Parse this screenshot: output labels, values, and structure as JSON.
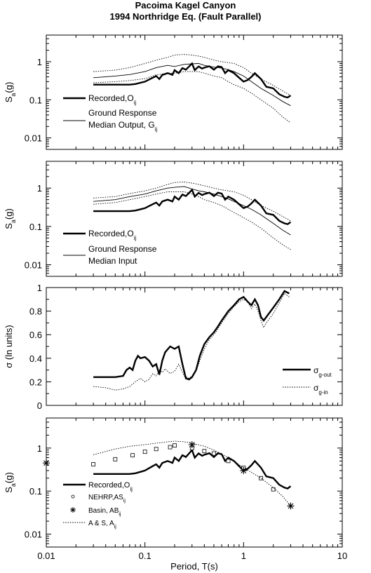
{
  "figure": {
    "title_line1": "Pacoima Kagel Canyon",
    "title_line2": "1994 Northridge Eq. (Fault Parallel)",
    "xlabel": "Period, T(s)",
    "xtick_labels": [
      "0.01",
      "0.1",
      "1",
      "10"
    ]
  },
  "chart_data": [
    {
      "type": "line",
      "panel": 1,
      "xscale": "log",
      "yscale": "log",
      "xlim": [
        0.01,
        10
      ],
      "ylim": [
        0.005,
        5
      ],
      "ylabel": "Sa(g)",
      "ytick_labels": [
        "0.01",
        "0.1",
        "1"
      ],
      "legend": [
        "Recorded,Oij",
        "Ground Response Median Output, Gij"
      ],
      "series": [
        {
          "name": "Recorded,Oij",
          "style": "thick",
          "x": [
            0.03,
            0.04,
            0.05,
            0.06,
            0.07,
            0.08,
            0.09,
            0.1,
            0.11,
            0.12,
            0.13,
            0.14,
            0.15,
            0.17,
            0.19,
            0.2,
            0.22,
            0.24,
            0.26,
            0.28,
            0.3,
            0.32,
            0.35,
            0.38,
            0.4,
            0.45,
            0.5,
            0.55,
            0.6,
            0.65,
            0.7,
            0.8,
            0.9,
            1.0,
            1.1,
            1.2,
            1.3,
            1.5,
            1.7,
            2.0,
            2.3,
            2.6,
            2.8,
            3.0
          ],
          "y": [
            0.25,
            0.25,
            0.25,
            0.25,
            0.25,
            0.26,
            0.28,
            0.3,
            0.34,
            0.38,
            0.42,
            0.35,
            0.45,
            0.5,
            0.45,
            0.6,
            0.5,
            0.68,
            0.62,
            0.75,
            0.9,
            0.6,
            0.75,
            0.66,
            0.7,
            0.76,
            0.62,
            0.76,
            0.72,
            0.5,
            0.6,
            0.5,
            0.38,
            0.3,
            0.33,
            0.4,
            0.5,
            0.35,
            0.22,
            0.2,
            0.14,
            0.12,
            0.115,
            0.13
          ]
        },
        {
          "name": "Ground Response Median Output, Gij",
          "style": "thin",
          "x": [
            0.03,
            0.05,
            0.07,
            0.1,
            0.13,
            0.17,
            0.2,
            0.25,
            0.3,
            0.35,
            0.4,
            0.5,
            0.6,
            0.7,
            0.8,
            1.0,
            1.2,
            1.5,
            2.0,
            2.5,
            3.0
          ],
          "y": [
            0.38,
            0.42,
            0.46,
            0.55,
            0.7,
            0.8,
            0.75,
            0.85,
            0.88,
            0.9,
            0.8,
            0.72,
            0.68,
            0.62,
            0.55,
            0.42,
            0.3,
            0.2,
            0.13,
            0.09,
            0.07
          ]
        },
        {
          "name": "upper",
          "style": "dotted",
          "x": [
            0.03,
            0.05,
            0.07,
            0.1,
            0.13,
            0.17,
            0.2,
            0.25,
            0.3,
            0.35,
            0.4,
            0.5,
            0.6,
            0.7,
            0.8,
            1.0,
            1.2,
            1.5,
            2.0,
            2.5,
            3.0
          ],
          "y": [
            0.55,
            0.6,
            0.7,
            0.9,
            1.1,
            1.3,
            1.5,
            1.55,
            1.5,
            1.4,
            1.3,
            1.1,
            1.0,
            0.95,
            0.9,
            0.7,
            0.5,
            0.35,
            0.24,
            0.17,
            0.13
          ]
        },
        {
          "name": "lower",
          "style": "dotted",
          "x": [
            0.03,
            0.05,
            0.07,
            0.1,
            0.13,
            0.17,
            0.2,
            0.25,
            0.3,
            0.35,
            0.4,
            0.5,
            0.6,
            0.7,
            0.8,
            1.0,
            1.2,
            1.5,
            2.0,
            2.5,
            3.0
          ],
          "y": [
            0.28,
            0.3,
            0.32,
            0.36,
            0.45,
            0.5,
            0.5,
            0.55,
            0.55,
            0.55,
            0.5,
            0.42,
            0.38,
            0.3,
            0.25,
            0.2,
            0.15,
            0.1,
            0.06,
            0.035,
            0.025
          ]
        }
      ]
    },
    {
      "type": "line",
      "panel": 2,
      "xscale": "log",
      "yscale": "log",
      "xlim": [
        0.01,
        10
      ],
      "ylim": [
        0.005,
        5
      ],
      "ylabel": "Sa(g)",
      "ytick_labels": [
        "0.01",
        "0.1",
        "1"
      ],
      "legend": [
        "Recorded,Oij",
        "Ground Response Median Input"
      ],
      "series": [
        {
          "name": "Recorded,Oij",
          "style": "thick",
          "x": [
            0.03,
            0.04,
            0.05,
            0.06,
            0.07,
            0.08,
            0.09,
            0.1,
            0.11,
            0.12,
            0.13,
            0.14,
            0.15,
            0.17,
            0.19,
            0.2,
            0.22,
            0.24,
            0.26,
            0.28,
            0.3,
            0.32,
            0.35,
            0.38,
            0.4,
            0.45,
            0.5,
            0.55,
            0.6,
            0.65,
            0.7,
            0.8,
            0.9,
            1.0,
            1.1,
            1.2,
            1.3,
            1.5,
            1.7,
            2.0,
            2.3,
            2.6,
            2.8,
            3.0
          ],
          "y": [
            0.25,
            0.25,
            0.25,
            0.25,
            0.25,
            0.26,
            0.28,
            0.3,
            0.34,
            0.38,
            0.42,
            0.35,
            0.45,
            0.5,
            0.45,
            0.6,
            0.5,
            0.68,
            0.62,
            0.75,
            0.9,
            0.6,
            0.75,
            0.66,
            0.7,
            0.76,
            0.62,
            0.76,
            0.72,
            0.5,
            0.6,
            0.5,
            0.38,
            0.3,
            0.33,
            0.4,
            0.5,
            0.35,
            0.22,
            0.2,
            0.14,
            0.12,
            0.115,
            0.13
          ]
        },
        {
          "name": "Ground Response Median Input",
          "style": "thin",
          "x": [
            0.03,
            0.05,
            0.07,
            0.1,
            0.13,
            0.17,
            0.2,
            0.25,
            0.3,
            0.35,
            0.4,
            0.5,
            0.6,
            0.7,
            0.8,
            1.0,
            1.2,
            1.5,
            2.0,
            2.5,
            3.0
          ],
          "y": [
            0.45,
            0.5,
            0.6,
            0.7,
            0.85,
            1.0,
            1.05,
            1.1,
            0.95,
            0.85,
            0.8,
            0.7,
            0.6,
            0.52,
            0.45,
            0.35,
            0.28,
            0.2,
            0.12,
            0.08,
            0.06
          ]
        },
        {
          "name": "upper",
          "style": "dotted",
          "x": [
            0.03,
            0.05,
            0.07,
            0.1,
            0.13,
            0.17,
            0.2,
            0.25,
            0.3,
            0.35,
            0.4,
            0.5,
            0.6,
            0.7,
            0.8,
            1.0,
            1.2,
            1.5,
            2.0,
            2.5,
            3.0
          ],
          "y": [
            0.55,
            0.6,
            0.72,
            0.85,
            1.0,
            1.25,
            1.4,
            1.45,
            1.35,
            1.25,
            1.15,
            1.0,
            0.9,
            0.85,
            0.8,
            0.65,
            0.5,
            0.35,
            0.25,
            0.18,
            0.14
          ]
        },
        {
          "name": "lower",
          "style": "dotted",
          "x": [
            0.03,
            0.05,
            0.07,
            0.1,
            0.13,
            0.17,
            0.2,
            0.25,
            0.3,
            0.35,
            0.4,
            0.5,
            0.6,
            0.7,
            0.8,
            1.0,
            1.2,
            1.5,
            2.0,
            2.5,
            3.0
          ],
          "y": [
            0.38,
            0.42,
            0.5,
            0.6,
            0.7,
            0.8,
            0.8,
            0.8,
            0.7,
            0.6,
            0.5,
            0.42,
            0.35,
            0.28,
            0.23,
            0.17,
            0.13,
            0.09,
            0.05,
            0.033,
            0.025
          ]
        }
      ]
    },
    {
      "type": "line",
      "panel": 3,
      "xscale": "log",
      "yscale": "linear",
      "xlim": [
        0.01,
        10
      ],
      "ylim": [
        0,
        1
      ],
      "ylabel": "σ (ln units)",
      "ytick_labels": [
        "0",
        "0.2",
        "0.4",
        "0.6",
        "0.8",
        "1"
      ],
      "legend": [
        "σg-out",
        "σg-in"
      ],
      "series": [
        {
          "name": "σg-out",
          "style": "thick",
          "x": [
            0.03,
            0.04,
            0.05,
            0.06,
            0.065,
            0.07,
            0.075,
            0.08,
            0.085,
            0.09,
            0.1,
            0.11,
            0.12,
            0.13,
            0.14,
            0.15,
            0.16,
            0.18,
            0.2,
            0.22,
            0.24,
            0.26,
            0.28,
            0.3,
            0.33,
            0.36,
            0.4,
            0.45,
            0.5,
            0.55,
            0.6,
            0.7,
            0.8,
            0.9,
            1.0,
            1.1,
            1.2,
            1.3,
            1.4,
            1.5,
            1.6,
            1.7,
            2.0,
            2.3,
            2.6,
            2.9
          ],
          "y": [
            0.24,
            0.24,
            0.24,
            0.25,
            0.3,
            0.32,
            0.3,
            0.38,
            0.42,
            0.4,
            0.41,
            0.38,
            0.33,
            0.35,
            0.26,
            0.38,
            0.45,
            0.5,
            0.48,
            0.5,
            0.35,
            0.23,
            0.22,
            0.24,
            0.3,
            0.42,
            0.52,
            0.58,
            0.62,
            0.67,
            0.72,
            0.8,
            0.85,
            0.9,
            0.92,
            0.88,
            0.85,
            0.9,
            0.85,
            0.75,
            0.72,
            0.75,
            0.83,
            0.9,
            0.97,
            0.95
          ]
        },
        {
          "name": "σg-in",
          "style": "dotted",
          "x": [
            0.03,
            0.04,
            0.05,
            0.06,
            0.07,
            0.08,
            0.09,
            0.1,
            0.11,
            0.12,
            0.13,
            0.14,
            0.15,
            0.16,
            0.18,
            0.2,
            0.22,
            0.25,
            0.28,
            0.3,
            0.33,
            0.36,
            0.4,
            0.45,
            0.5,
            0.55,
            0.6,
            0.7,
            0.8,
            0.9,
            1.0,
            1.1,
            1.2,
            1.3,
            1.4,
            1.5,
            1.6,
            1.7,
            2.0,
            2.3,
            2.6,
            2.9
          ],
          "y": [
            0.16,
            0.15,
            0.13,
            0.14,
            0.16,
            0.2,
            0.23,
            0.2,
            0.22,
            0.27,
            0.25,
            0.3,
            0.28,
            0.31,
            0.27,
            0.29,
            0.35,
            0.25,
            0.23,
            0.25,
            0.29,
            0.38,
            0.48,
            0.56,
            0.6,
            0.65,
            0.7,
            0.78,
            0.84,
            0.88,
            0.9,
            0.88,
            0.82,
            0.86,
            0.8,
            0.72,
            0.66,
            0.7,
            0.78,
            0.87,
            0.95,
            0.92
          ]
        }
      ]
    },
    {
      "type": "line",
      "panel": 4,
      "xscale": "log",
      "yscale": "log",
      "xlim": [
        0.01,
        10
      ],
      "ylim": [
        0.005,
        5
      ],
      "ylabel": "Sa(g)",
      "ytick_labels": [
        "0.01",
        "0.1",
        "1"
      ],
      "legend": [
        "Recorded,Oij",
        "NEHRP,ASij",
        "Basin, ABij",
        "A & S, Aij"
      ],
      "series": [
        {
          "name": "Recorded,Oij",
          "style": "thick",
          "x": [
            0.03,
            0.04,
            0.05,
            0.06,
            0.07,
            0.08,
            0.09,
            0.1,
            0.11,
            0.12,
            0.13,
            0.14,
            0.15,
            0.17,
            0.19,
            0.2,
            0.22,
            0.24,
            0.26,
            0.28,
            0.3,
            0.32,
            0.35,
            0.38,
            0.4,
            0.45,
            0.5,
            0.55,
            0.6,
            0.65,
            0.7,
            0.8,
            0.9,
            1.0,
            1.1,
            1.2,
            1.3,
            1.5,
            1.7,
            2.0,
            2.3,
            2.6,
            2.8,
            3.0
          ],
          "y": [
            0.25,
            0.25,
            0.25,
            0.25,
            0.25,
            0.26,
            0.28,
            0.3,
            0.34,
            0.38,
            0.42,
            0.35,
            0.45,
            0.5,
            0.45,
            0.6,
            0.5,
            0.68,
            0.62,
            0.75,
            0.9,
            0.6,
            0.75,
            0.66,
            0.7,
            0.76,
            0.62,
            0.76,
            0.72,
            0.5,
            0.6,
            0.5,
            0.38,
            0.3,
            0.33,
            0.4,
            0.5,
            0.35,
            0.22,
            0.2,
            0.14,
            0.12,
            0.115,
            0.13
          ]
        },
        {
          "name": "NEHRP,ASij",
          "style": "squares",
          "x": [
            0.03,
            0.05,
            0.075,
            0.1,
            0.13,
            0.18,
            0.2,
            0.3,
            0.4,
            0.5,
            0.7,
            1.0,
            1.5,
            2.0
          ],
          "y": [
            0.42,
            0.55,
            0.68,
            0.82,
            0.95,
            1.05,
            1.15,
            1.0,
            0.85,
            0.75,
            0.5,
            0.35,
            0.2,
            0.11
          ]
        },
        {
          "name": "Basin, ABij",
          "style": "asterisks",
          "x": [
            0.01,
            0.3,
            1.0,
            3.0
          ],
          "y": [
            0.45,
            1.2,
            0.3,
            0.045
          ]
        },
        {
          "name": "A & S, Aij",
          "style": "dotted",
          "x": [
            0.03,
            0.05,
            0.07,
            0.1,
            0.13,
            0.17,
            0.2,
            0.25,
            0.3,
            0.4,
            0.5,
            0.7,
            1.0,
            1.5,
            2.0,
            2.5,
            3.0
          ],
          "y": [
            0.7,
            0.95,
            1.1,
            1.2,
            1.3,
            1.4,
            1.45,
            1.4,
            1.3,
            1.1,
            0.9,
            0.6,
            0.35,
            0.2,
            0.12,
            0.075,
            0.045
          ]
        }
      ]
    }
  ]
}
